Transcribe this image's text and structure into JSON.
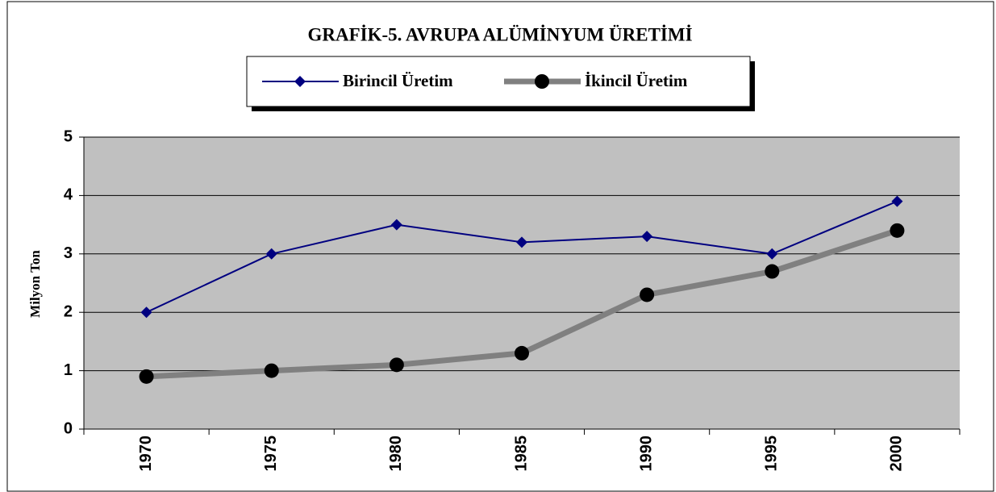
{
  "chart_data": {
    "type": "line",
    "title": "GRAFİK-5. AVRUPA ALÜMİNYUM ÜRETİMİ",
    "y_label": "Milyon Ton",
    "categories": [
      "1970",
      "1975",
      "1980",
      "1985",
      "1990",
      "1995",
      "2000"
    ],
    "series": [
      {
        "name": "Birincil Üretim",
        "color": "#000080",
        "marker": "diamond",
        "values": [
          2,
          3,
          3.5,
          3.2,
          3.3,
          3.0,
          3.9
        ]
      },
      {
        "name": "İkincil Üretim",
        "color": "#808080",
        "marker": "circle",
        "marker_color": "#000000",
        "values": [
          0.9,
          1.0,
          1.1,
          1.3,
          2.3,
          2.7,
          3.4
        ]
      }
    ],
    "ylim": [
      0,
      5
    ],
    "yticks": [
      0,
      1,
      2,
      3,
      4,
      5
    ],
    "grid": true,
    "plot_background": "#c0c0c0",
    "legend": "top"
  }
}
